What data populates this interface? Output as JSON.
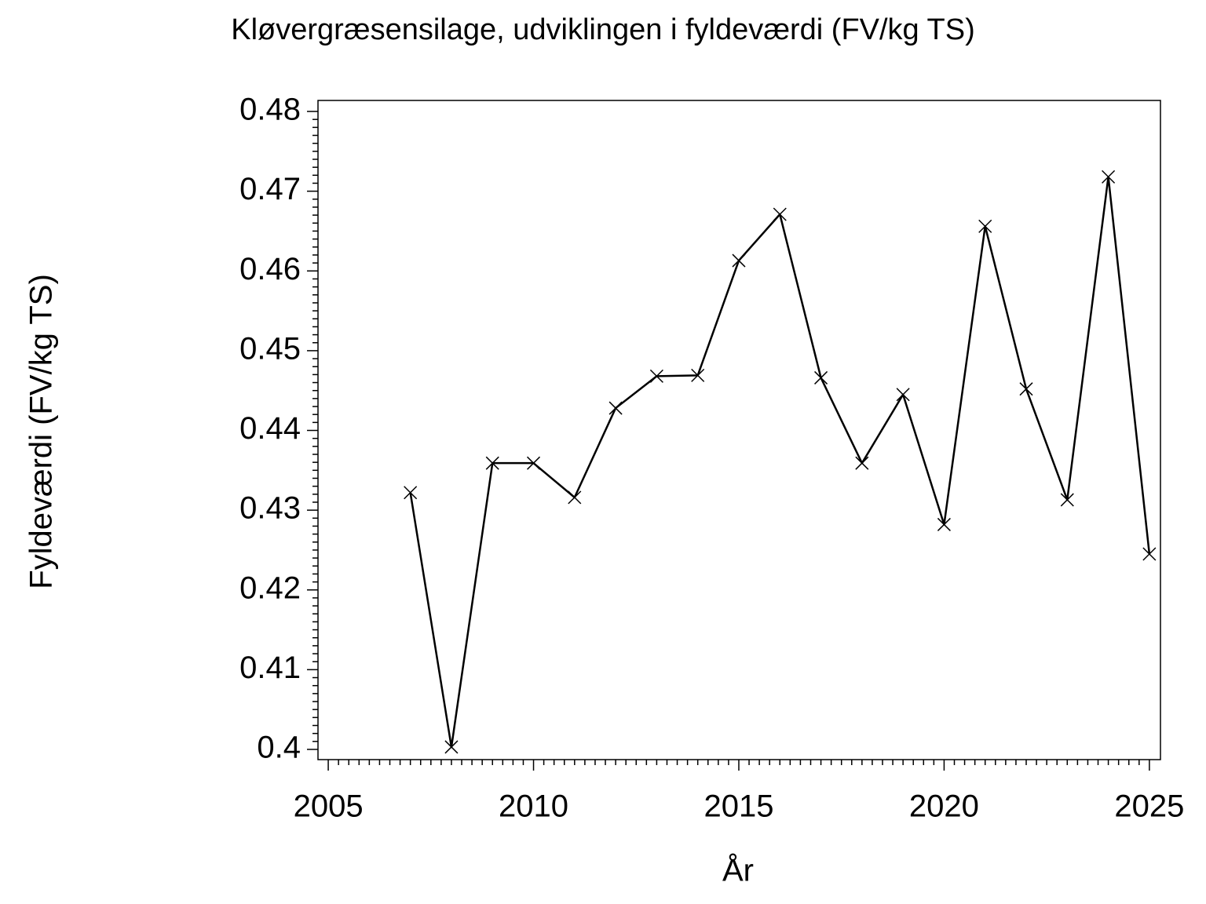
{
  "chart_data": {
    "type": "line",
    "title": "Kløvergræsensilage, udviklingen i fyldeværdi (FV/kg TS)",
    "x_label": "År",
    "y_label": "Fyldeværdi (FV/kg TS)",
    "x": [
      2007,
      2008,
      2009,
      2010,
      2011,
      2012,
      2013,
      2014,
      2015,
      2016,
      2017,
      2018,
      2019,
      2020,
      2021,
      2022,
      2023,
      2024,
      2025
    ],
    "series": [
      {
        "color": "#000000",
        "values": [
          0.4322,
          0.4003,
          0.4359,
          0.4359,
          0.4316,
          0.4428,
          0.4468,
          0.4469,
          0.4613,
          0.4671,
          0.4466,
          0.4359,
          0.4445,
          0.4282,
          0.4656,
          0.4452,
          0.4313,
          0.4718,
          0.4245
        ]
      }
    ],
    "xlim": [
      2004.75,
      2025.27
    ],
    "ylim": [
      0.39872,
      0.48138
    ],
    "xticks": [
      2005,
      2010,
      2015,
      2020,
      2025
    ],
    "yticks": [
      0.4,
      0.41,
      0.42,
      0.43,
      0.44,
      0.45,
      0.46,
      0.47,
      0.48
    ],
    "marker": "x",
    "grid": false
  }
}
